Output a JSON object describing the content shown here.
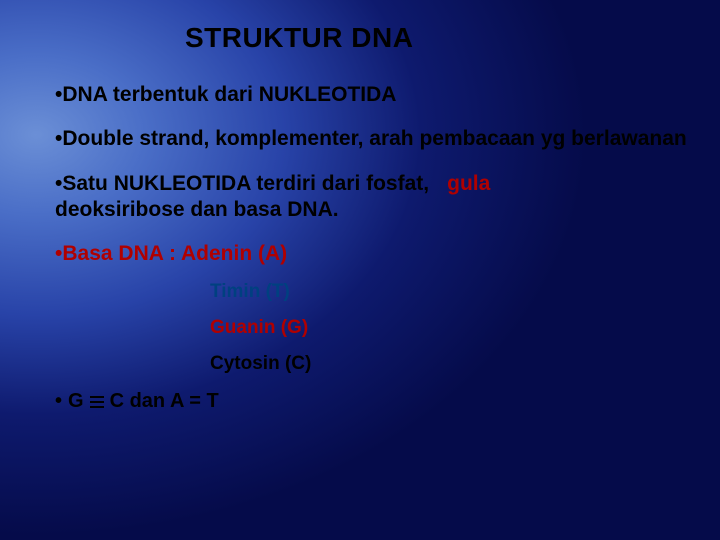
{
  "slide": {
    "title": "STRUKTUR DNA",
    "background": {
      "type": "radial-gradient",
      "center": "top-left",
      "stops": [
        "#6b8fd6",
        "#4a6ec7",
        "#2843a8",
        "#0e1a6e",
        "#050b4a"
      ]
    },
    "font_family": "Verdana",
    "title_fontsize": 28,
    "body_fontsize": 21,
    "sub_fontsize": 19,
    "colors": {
      "text_black": "#000000",
      "text_red": "#b00000",
      "text_blue": "#004080"
    },
    "bullets": [
      {
        "prefix": "•",
        "text": "DNA terbentuk dari NUKLEOTIDA",
        "color": "#000000"
      },
      {
        "prefix": "•",
        "text": "Double strand, komplementer, arah pembacaan yg berlawanan",
        "color": "#000000"
      },
      {
        "prefix": "•",
        "text_main": "Satu NUKLEOTIDA terdiri dari fosfat,",
        "text_accent": "gula",
        "text_after": "deoksiribose dan basa DNA.",
        "color_main": "#000000",
        "color_accent": "#b00000"
      },
      {
        "prefix": "•",
        "text": "Basa DNA : Adenin (A)",
        "color": "#b00000"
      }
    ],
    "sub_items": [
      {
        "text": "Timin (T)",
        "color": "#004080"
      },
      {
        "text": "Guanin (G)",
        "color": "#b00000"
      },
      {
        "text": "Cytosin (C)",
        "color": "#000000"
      }
    ],
    "pairing": {
      "prefix": "•",
      "left": "G",
      "symbol": "≡",
      "mid": "C dan A = T",
      "color": "#000000"
    }
  }
}
